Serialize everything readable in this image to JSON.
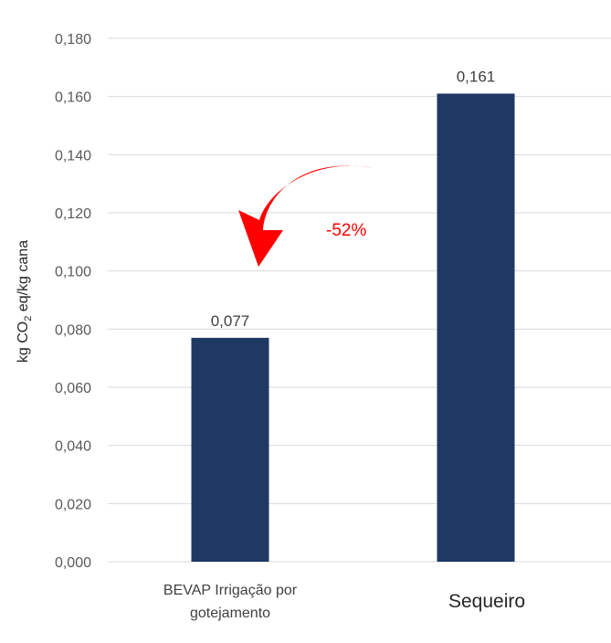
{
  "chart_data": {
    "type": "bar",
    "categories": [
      [
        "BEVAP Irrigação por",
        "gotejamento"
      ],
      [
        "Sequeiro"
      ]
    ],
    "values": [
      0.077,
      0.161
    ],
    "data_labels": [
      "0,077",
      "0,161"
    ],
    "ylabel": {
      "pre": "kg CO",
      "sub": "2",
      "post": " eq/kg cana"
    },
    "ylim": [
      0,
      0.18
    ],
    "yticks": [
      0,
      0.02,
      0.04,
      0.06,
      0.08,
      0.1,
      0.12,
      0.14,
      0.16,
      0.18
    ],
    "ytick_labels": [
      "0,000",
      "0,020",
      "0,040",
      "0,060",
      "0,080",
      "0,100",
      "0,120",
      "0,140",
      "0,160",
      "0,180"
    ],
    "grid": true,
    "bar_color": "#1f3864",
    "annotation": {
      "text": "-52%",
      "color": "#ff0000",
      "arrow": "curved-arrow-left-down"
    }
  }
}
